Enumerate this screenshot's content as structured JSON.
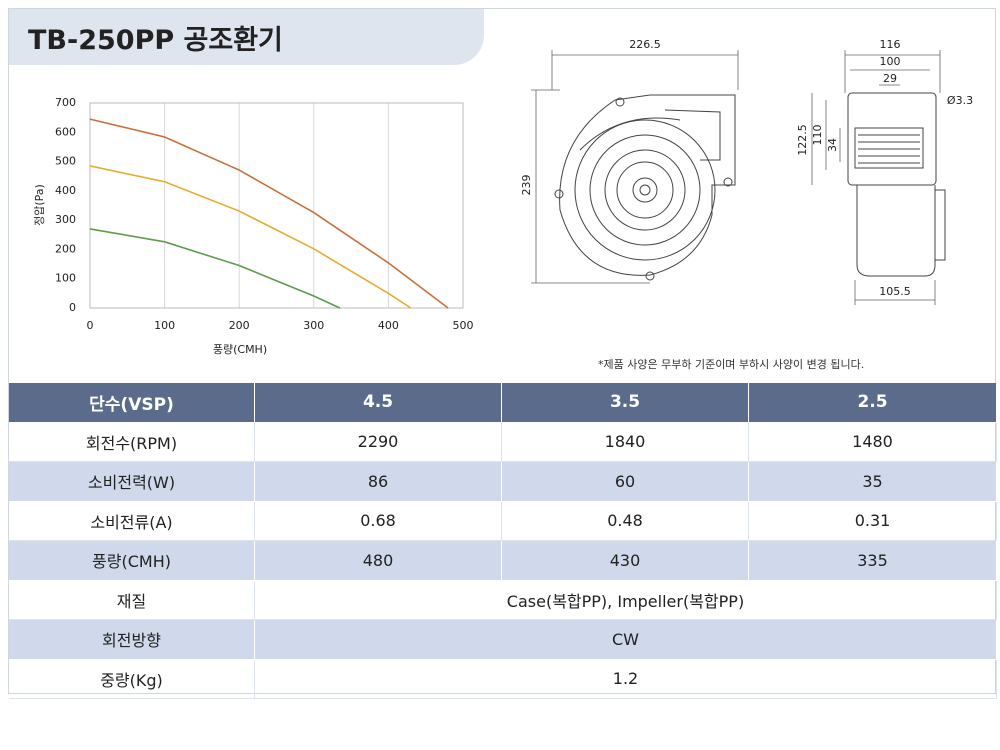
{
  "header": {
    "title": "TB-250PP 공조환기"
  },
  "chart_data": {
    "type": "line",
    "x_label": "풍량(CMH)",
    "y_label": "정압(Pa)",
    "xlim": [
      0,
      500
    ],
    "ylim": [
      0,
      700
    ],
    "xticks": [
      0,
      100,
      200,
      300,
      400,
      500
    ],
    "yticks": [
      0,
      100,
      200,
      300,
      400,
      500,
      600,
      700
    ],
    "grid": "vertical",
    "series": [
      {
        "color": "#c8703a",
        "x": [
          0,
          100,
          200,
          300,
          400,
          480
        ],
        "values": [
          645,
          584,
          471,
          326,
          154,
          0
        ]
      },
      {
        "color": "#e3ad2e",
        "x": [
          0,
          100,
          200,
          300,
          400,
          430
        ],
        "values": [
          485,
          431,
          331,
          202,
          50,
          0
        ]
      },
      {
        "color": "#5f9c4a",
        "x": [
          0,
          100,
          200,
          300,
          335
        ],
        "values": [
          270,
          226,
          145,
          41,
          0
        ]
      }
    ]
  },
  "drawing": {
    "dimensions": [
      "226.5",
      "239",
      "116",
      "100",
      "29",
      "Ø3.3",
      "122.5",
      "110",
      "34",
      "105.5"
    ],
    "note": "*제품 사양은 무부하 기준이며 부하시 사양이 변경 됩니다."
  },
  "table": {
    "header": [
      "단수(VSP)",
      "4.5",
      "3.5",
      "2.5"
    ],
    "rows": [
      [
        "회전수(RPM)",
        "2290",
        "1840",
        "1480"
      ],
      [
        "소비전력(W)",
        "86",
        "60",
        "35"
      ],
      [
        "소비전류(A)",
        "0.68",
        "0.48",
        "0.31"
      ],
      [
        "풍량(CMH)",
        "480",
        "430",
        "335"
      ],
      [
        "재질",
        "Case(복합PP), Impeller(복합PP)"
      ],
      [
        "회전방향",
        "CW"
      ],
      [
        "중량(Kg)",
        "1.2"
      ]
    ]
  }
}
